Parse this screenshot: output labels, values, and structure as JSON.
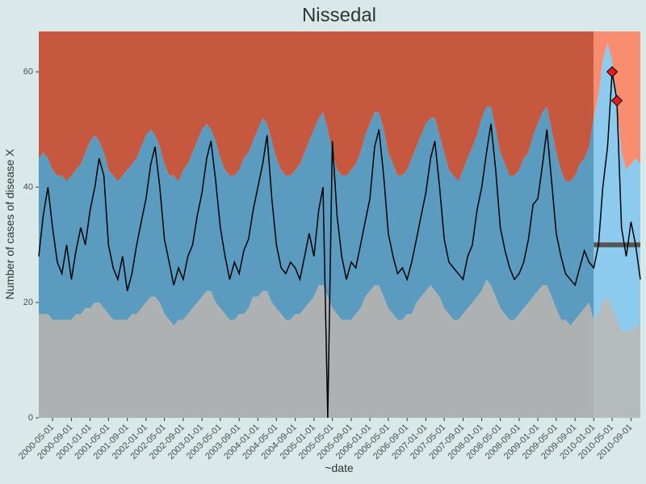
{
  "chart_data": {
    "type": "area-band",
    "title": "Nissedal",
    "x_label": "~date",
    "y_label": "Number of cases of disease X",
    "xlim": [
      "2000-02-01",
      "2010-11-01"
    ],
    "ylim": [
      0,
      67
    ],
    "yticks": [
      0,
      20,
      40,
      60
    ],
    "xticks": [
      "2000-05-01",
      "2000-09-01",
      "2001-01-01",
      "2001-05-01",
      "2001-09-01",
      "2002-01-01",
      "2002-05-01",
      "2002-09-01",
      "2003-01-01",
      "2003-05-01",
      "2003-09-01",
      "2004-01-01",
      "2004-05-01",
      "2004-09-01",
      "2005-01-01",
      "2005-05-01",
      "2005-09-01",
      "2006-01-01",
      "2006-05-01",
      "2006-09-01",
      "2007-01-01",
      "2007-05-01",
      "2007-09-01",
      "2008-01-01",
      "2008-05-01",
      "2008-09-01",
      "2009-01-01",
      "2009-05-01",
      "2009-09-01",
      "2010-01-01",
      "2010-05-01",
      "2010-09-01"
    ],
    "x": [
      "2000-02-01",
      "2000-03-01",
      "2000-04-01",
      "2000-05-01",
      "2000-06-01",
      "2000-07-01",
      "2000-08-01",
      "2000-09-01",
      "2000-10-01",
      "2000-11-01",
      "2000-12-01",
      "2001-01-01",
      "2001-02-01",
      "2001-03-01",
      "2001-04-01",
      "2001-05-01",
      "2001-06-01",
      "2001-07-01",
      "2001-08-01",
      "2001-09-01",
      "2001-10-01",
      "2001-11-01",
      "2001-12-01",
      "2002-01-01",
      "2002-02-01",
      "2002-03-01",
      "2002-04-01",
      "2002-05-01",
      "2002-06-01",
      "2002-07-01",
      "2002-08-01",
      "2002-09-01",
      "2002-10-01",
      "2002-11-01",
      "2002-12-01",
      "2003-01-01",
      "2003-02-01",
      "2003-03-01",
      "2003-04-01",
      "2003-05-01",
      "2003-06-01",
      "2003-07-01",
      "2003-08-01",
      "2003-09-01",
      "2003-10-01",
      "2003-11-01",
      "2003-12-01",
      "2004-01-01",
      "2004-02-01",
      "2004-03-01",
      "2004-04-01",
      "2004-05-01",
      "2004-06-01",
      "2004-07-01",
      "2004-08-01",
      "2004-09-01",
      "2004-10-01",
      "2004-11-01",
      "2004-12-01",
      "2005-01-01",
      "2005-02-01",
      "2005-03-01",
      "2005-04-01",
      "2005-05-01",
      "2005-06-01",
      "2005-07-01",
      "2005-08-01",
      "2005-09-01",
      "2005-10-01",
      "2005-11-01",
      "2005-12-01",
      "2006-01-01",
      "2006-02-01",
      "2006-03-01",
      "2006-04-01",
      "2006-05-01",
      "2006-06-01",
      "2006-07-01",
      "2006-08-01",
      "2006-09-01",
      "2006-10-01",
      "2006-11-01",
      "2006-12-01",
      "2007-01-01",
      "2007-02-01",
      "2007-03-01",
      "2007-04-01",
      "2007-05-01",
      "2007-06-01",
      "2007-07-01",
      "2007-08-01",
      "2007-09-01",
      "2007-10-01",
      "2007-11-01",
      "2007-12-01",
      "2008-01-01",
      "2008-02-01",
      "2008-03-01",
      "2008-04-01",
      "2008-05-01",
      "2008-06-01",
      "2008-07-01",
      "2008-08-01",
      "2008-09-01",
      "2008-10-01",
      "2008-11-01",
      "2008-12-01",
      "2009-01-01",
      "2009-02-01",
      "2009-03-01",
      "2009-04-01",
      "2009-05-01",
      "2009-06-01",
      "2009-07-01",
      "2009-08-01",
      "2009-09-01",
      "2009-10-01",
      "2009-11-01",
      "2009-12-01",
      "2010-01-01",
      "2010-02-01",
      "2010-03-01",
      "2010-04-01",
      "2010-05-01",
      "2010-06-01",
      "2010-07-01",
      "2010-08-01",
      "2010-09-01",
      "2010-10-01",
      "2010-11-01"
    ],
    "values": [
      28,
      35,
      40,
      33,
      27,
      25,
      30,
      24,
      29,
      33,
      30,
      36,
      40,
      45,
      42,
      30,
      26,
      24,
      28,
      22,
      25,
      30,
      34,
      38,
      44,
      47,
      40,
      31,
      27,
      23,
      26,
      24,
      28,
      30,
      35,
      39,
      45,
      48,
      41,
      33,
      28,
      24,
      27,
      25,
      29,
      31,
      36,
      40,
      44,
      49,
      38,
      30,
      26,
      25,
      27,
      26,
      24,
      28,
      32,
      28,
      36,
      40,
      0,
      48,
      35,
      28,
      24,
      27,
      26,
      30,
      34,
      38,
      47,
      50,
      42,
      32,
      28,
      25,
      26,
      24,
      27,
      31,
      35,
      39,
      45,
      48,
      40,
      31,
      27,
      26,
      25,
      24,
      28,
      30,
      36,
      40,
      46,
      51,
      43,
      33,
      29,
      26,
      24,
      25,
      27,
      31,
      37,
      38,
      44,
      50,
      41,
      32,
      28,
      25,
      24,
      23,
      26,
      29,
      27,
      26,
      30,
      40,
      47,
      60,
      55,
      33,
      28,
      34,
      30,
      24
    ],
    "upper": [
      45,
      46,
      45,
      43,
      42,
      42,
      41,
      42,
      43,
      44,
      46,
      48,
      49,
      48,
      46,
      43,
      42,
      41,
      42,
      43,
      44,
      45,
      47,
      49,
      50,
      49,
      47,
      44,
      42,
      42,
      41,
      43,
      44,
      46,
      48,
      50,
      51,
      50,
      48,
      45,
      43,
      42,
      42,
      43,
      45,
      46,
      48,
      50,
      52,
      51,
      48,
      45,
      43,
      42,
      42,
      43,
      44,
      46,
      48,
      50,
      52,
      53,
      50,
      46,
      43,
      42,
      42,
      43,
      44,
      46,
      49,
      51,
      53,
      53,
      50,
      46,
      44,
      42,
      42,
      43,
      45,
      47,
      49,
      51,
      52,
      52,
      49,
      46,
      43,
      42,
      41,
      43,
      45,
      47,
      49,
      52,
      54,
      54,
      50,
      46,
      44,
      42,
      42,
      43,
      45,
      46,
      49,
      51,
      53,
      54,
      50,
      46,
      43,
      41,
      41,
      42,
      44,
      45,
      47,
      52,
      56,
      62,
      65,
      62,
      54,
      46,
      43,
      44,
      45,
      44
    ],
    "lower": [
      18,
      18,
      18,
      17,
      17,
      17,
      17,
      17,
      18,
      18,
      19,
      19,
      20,
      20,
      19,
      18,
      17,
      17,
      17,
      17,
      18,
      18,
      19,
      20,
      21,
      21,
      20,
      18,
      17,
      16,
      17,
      17,
      18,
      19,
      20,
      21,
      22,
      22,
      20,
      19,
      18,
      17,
      17,
      18,
      18,
      19,
      21,
      21,
      22,
      22,
      20,
      19,
      18,
      17,
      17,
      18,
      18,
      19,
      20,
      21,
      23,
      23,
      21,
      19,
      18,
      17,
      17,
      17,
      18,
      19,
      21,
      22,
      23,
      23,
      21,
      19,
      18,
      17,
      17,
      18,
      18,
      20,
      21,
      22,
      23,
      22,
      21,
      19,
      18,
      17,
      17,
      18,
      19,
      20,
      21,
      22,
      24,
      23,
      21,
      19,
      18,
      17,
      17,
      18,
      19,
      20,
      21,
      22,
      23,
      23,
      21,
      19,
      17,
      17,
      16,
      17,
      18,
      19,
      20,
      17,
      18,
      20,
      21,
      19,
      17,
      15,
      15,
      15,
      16,
      16
    ],
    "threshold": {
      "x": [
        "2010-01-01",
        "2010-11-01"
      ],
      "value": 30,
      "color": "#555555"
    },
    "alarms": {
      "x": [
        "2010-05-01",
        "2010-06-01"
      ],
      "values": [
        60,
        55
      ],
      "color": "#e41a1c"
    },
    "colors": {
      "past": {
        "low": "#adb1b1",
        "band": "#5b9bbf",
        "high": "#c6583f"
      },
      "future": {
        "low": "#b5baba",
        "band": "#8ccbee",
        "high": "#f98d70"
      },
      "line": "#000000"
    }
  }
}
